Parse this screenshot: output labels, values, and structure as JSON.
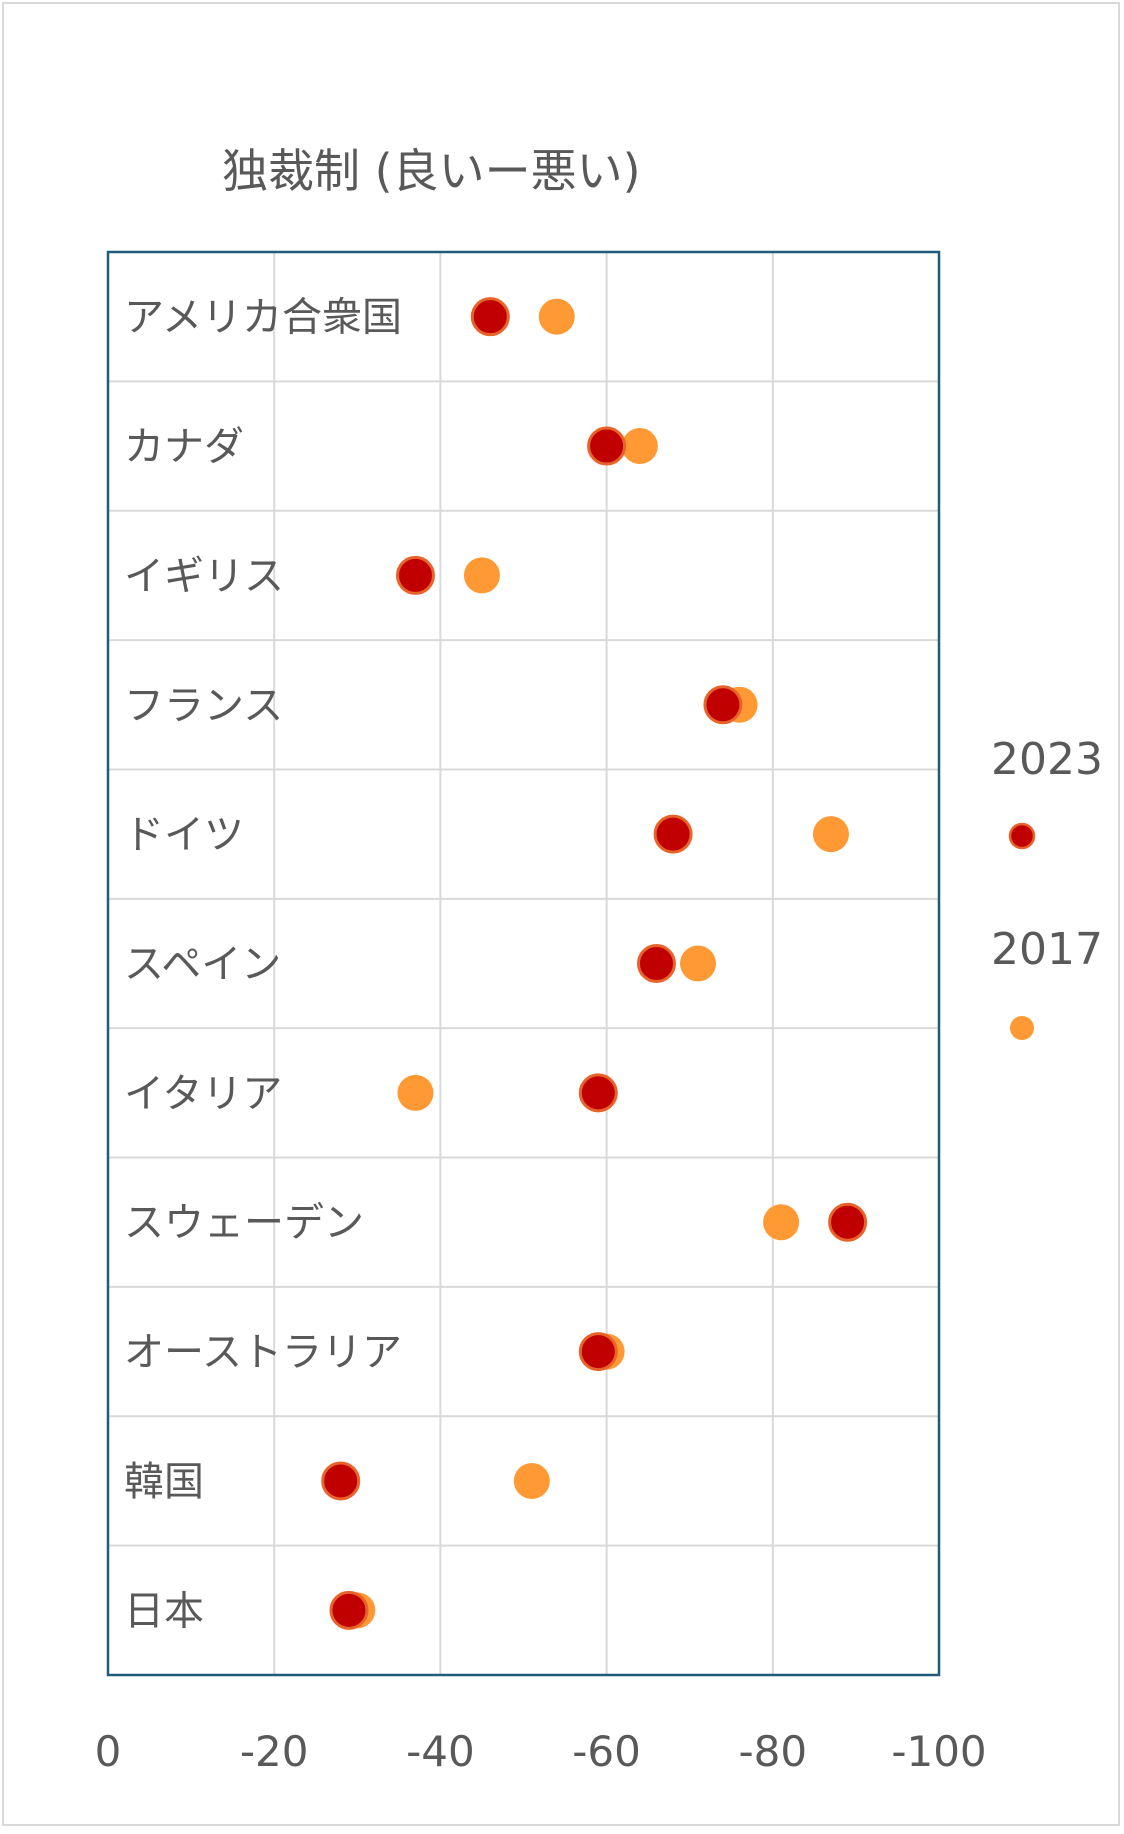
{
  "chart_data": {
    "type": "scatter",
    "title": "独裁制 (良いー悪い)",
    "categories": [
      "アメリカ合衆国",
      "カナダ",
      "イギリス",
      "フランス",
      "ドイツ",
      "スペイン",
      "イタリア",
      "スウェーデン",
      "オーストラリア",
      "韓国",
      "日本"
    ],
    "series": [
      {
        "name": "2017",
        "color": "#ff9933",
        "values": [
          -54,
          -64,
          -45,
          -76,
          -87,
          -71,
          -37,
          -81,
          -60,
          -51,
          -30
        ]
      },
      {
        "name": "2023",
        "color": "#c00000",
        "values": [
          -46,
          -60,
          -37,
          -74,
          -68,
          -66,
          -59,
          -89,
          -59,
          -28,
          -29
        ]
      }
    ],
    "xlim": [
      0,
      -100
    ],
    "xticks": [
      0,
      -20,
      -40,
      -60,
      -80,
      -100
    ],
    "xtick_labels": [
      "0",
      "-20",
      "-40",
      "-60",
      "-80",
      "-100"
    ],
    "xlabel": "",
    "ylabel": "",
    "grid": true,
    "legend": "right",
    "legend_order": [
      "2023",
      "2017"
    ],
    "colors": {
      "plot_border": "#1f5c7a",
      "grid": "#d9d9d9",
      "marker_edge": "#e8632a"
    }
  }
}
